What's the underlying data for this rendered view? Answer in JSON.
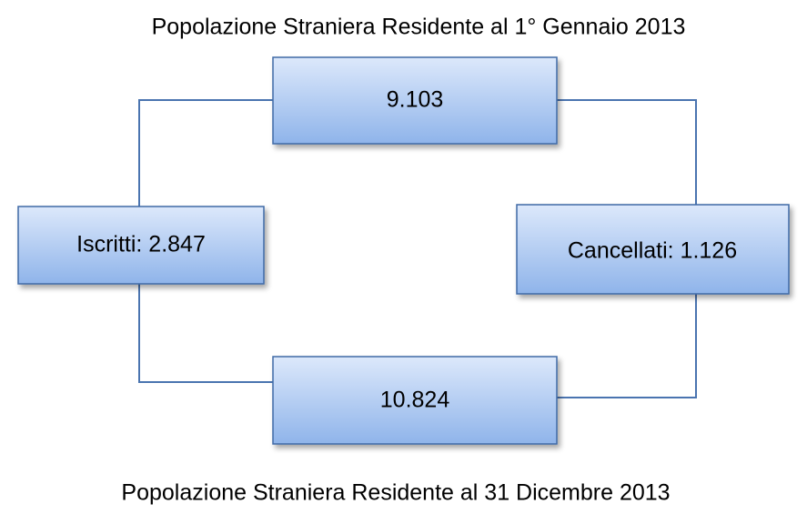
{
  "header": {
    "title": "Popolazione Straniera Residente al 1° Gennaio 2013"
  },
  "nodes": [
    {
      "label": "9.103"
    },
    {
      "label": "Iscritti: 2.847"
    },
    {
      "label": "Cancellati: 1.126"
    },
    {
      "label": "10.824"
    }
  ],
  "footer": {
    "title": "Popolazione Straniera Residente al 31 Dicembre 2013"
  }
}
